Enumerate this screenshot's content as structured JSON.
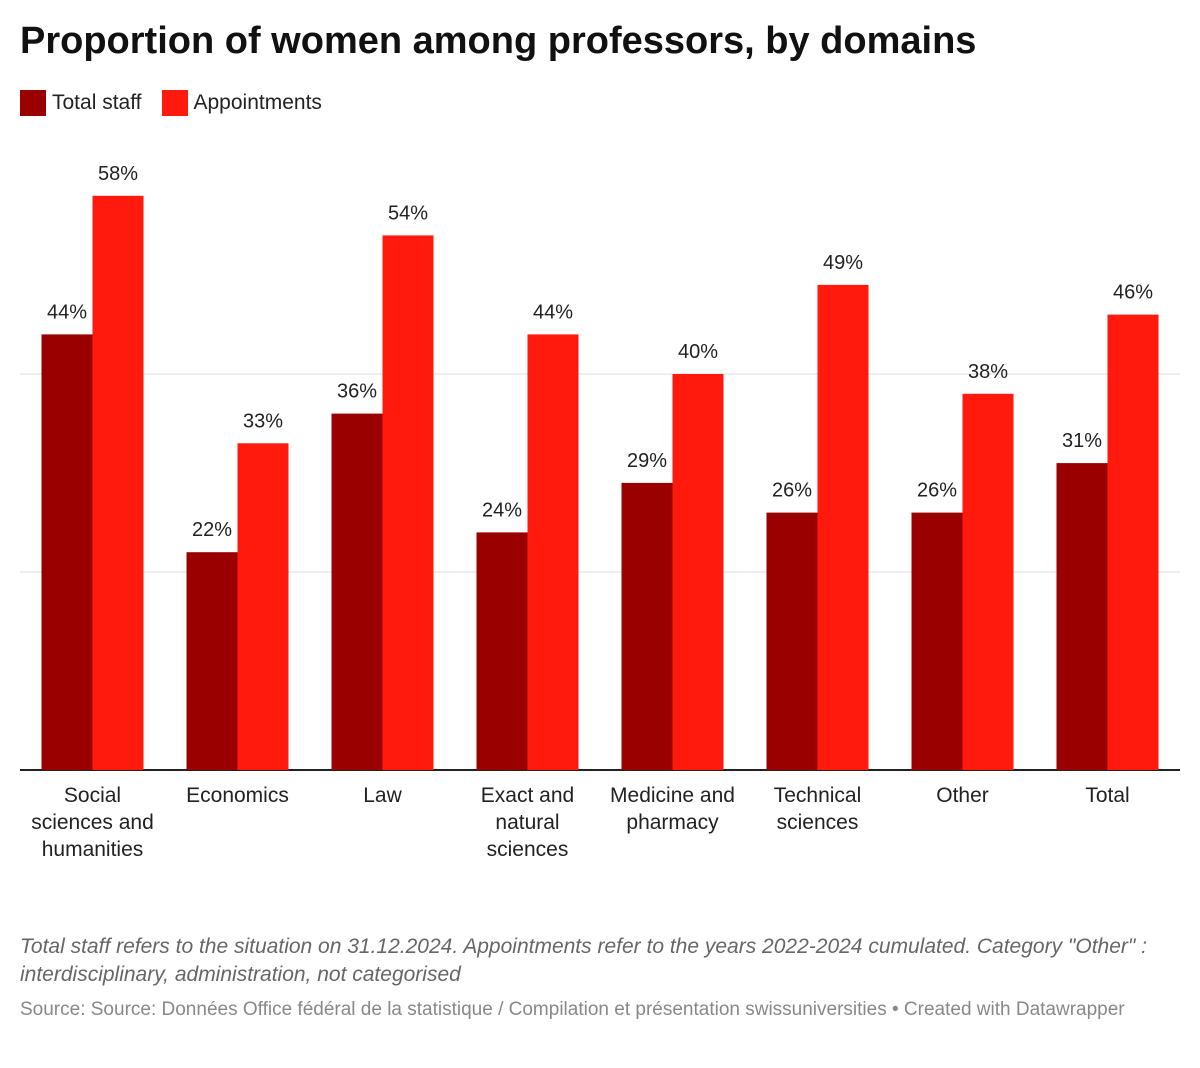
{
  "chart_data": {
    "type": "bar",
    "title": "Proportion of women among professors, by domains",
    "categories": [
      "Social sciences and humanities",
      "Economics",
      "Law",
      "Exact and natural sciences",
      "Medicine and pharmacy",
      "Technical sciences",
      "Other",
      "Total"
    ],
    "series": [
      {
        "name": "Total staff",
        "color": "#9b0000",
        "values": [
          44,
          22,
          36,
          24,
          29,
          26,
          26,
          31
        ],
        "value_labels": [
          "44%",
          "22%",
          "36%",
          "24%",
          "29%",
          "26%",
          "26%",
          "31%"
        ]
      },
      {
        "name": "Appointments",
        "color": "#ff1a0d",
        "values": [
          58,
          33,
          54,
          44,
          40,
          49,
          38,
          46
        ],
        "value_labels": [
          "58%",
          "33%",
          "54%",
          "44%",
          "40%",
          "49%",
          "38%",
          "46%"
        ]
      }
    ],
    "ylim": [
      0,
      60
    ],
    "yticks": [
      0,
      20,
      40
    ],
    "grid": true,
    "note": "Total staff refers to the situation on 31.12.2024. Appointments refer to the years 2022-2024 cumulated. Category \"Other\" : interdisciplinary, administration, not categorised",
    "source": "Source: Source: Données Office fédéral de la statistique / Compilation et présentation swissuniversities • Created with Datawrapper"
  }
}
